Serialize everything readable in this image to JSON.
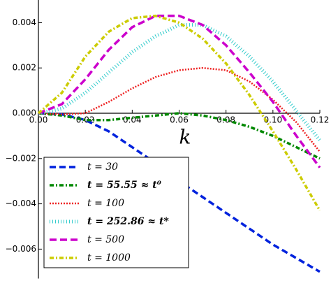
{
  "chart_data": {
    "type": "line",
    "x_label": "k",
    "x": [
      0,
      0.01,
      0.02,
      0.03,
      0.04,
      0.05,
      0.06,
      0.07,
      0.08,
      0.09,
      0.1,
      0.11,
      0.12
    ],
    "xlim": [
      0,
      0.12
    ],
    "xticks": [
      {
        "value": 0,
        "label": "0.00"
      },
      {
        "value": 0.02,
        "label": "0.02"
      },
      {
        "value": 0.04,
        "label": "0.04"
      },
      {
        "value": 0.06,
        "label": "0.06"
      },
      {
        "value": 0.08,
        "label": "0.08"
      },
      {
        "value": 0.1,
        "label": "0.10"
      },
      {
        "value": 0.12,
        "label": "0.12"
      }
    ],
    "ylim": [
      -0.0073,
      0.005
    ],
    "yticks": [
      {
        "value": -0.006,
        "label": "−0.006"
      },
      {
        "value": -0.004,
        "label": "−0.004"
      },
      {
        "value": -0.002,
        "label": "−0.002"
      },
      {
        "value": 0,
        "label": "0.000"
      },
      {
        "value": 0.002,
        "label": "0.002"
      },
      {
        "value": 0.004,
        "label": "0.004"
      }
    ],
    "legend": "lower left",
    "series": [
      {
        "name": "t = 30",
        "color": "#0022dd",
        "dash": "9 5",
        "width": 3.5,
        "bold": false,
        "values": [
          0,
          -5e-05,
          -0.0003,
          -0.0008,
          -0.0015,
          -0.0022,
          -0.003,
          -0.0037,
          -0.0044,
          -0.0051,
          -0.0058,
          -0.0064,
          -0.007
        ]
      },
      {
        "name": "t = 55.55 ≈ t⁰",
        "color": "#008800",
        "dash": "6 3 2 3",
        "width": 3.5,
        "bold": true,
        "values": [
          0,
          -0.0001,
          -0.0003,
          -0.0003,
          -0.0002,
          -0.0001,
          0,
          -0.0001,
          -0.0003,
          -0.0006,
          -0.001,
          -0.0015,
          -0.002
        ]
      },
      {
        "name": "t = 100",
        "color": "#ee2222",
        "dash": "2 2",
        "width": 2.5,
        "bold": false,
        "values": [
          0,
          -5e-05,
          0,
          0.0005,
          0.0011,
          0.0016,
          0.0019,
          0.002,
          0.0019,
          0.0014,
          0.0006,
          -0.0004,
          -0.0017
        ]
      },
      {
        "name": "t = 252.86 ≈ t*",
        "color": "#33cccc",
        "dash": "1 3",
        "width": 5,
        "bold": true,
        "values": [
          0,
          0.0002,
          0.0009,
          0.0018,
          0.0027,
          0.0034,
          0.0039,
          0.0039,
          0.0034,
          0.0025,
          0.0014,
          0.0001,
          -0.0012
        ]
      },
      {
        "name": "t = 500",
        "color": "#cc00cc",
        "dash": "10 5",
        "width": 3.5,
        "bold": false,
        "values": [
          0,
          0.0004,
          0.0015,
          0.0028,
          0.0038,
          0.0043,
          0.0043,
          0.0039,
          0.003,
          0.0018,
          0.0005,
          -0.001,
          -0.0024
        ]
      },
      {
        "name": "t = 1000",
        "color": "#cccc00",
        "dash": "6 3 2 3",
        "width": 3.5,
        "bold": false,
        "values": [
          0,
          0.0009,
          0.0025,
          0.0036,
          0.0042,
          0.0043,
          0.004,
          0.0033,
          0.0022,
          0.0008,
          -0.0008,
          -0.0025,
          -0.0043
        ]
      }
    ]
  }
}
